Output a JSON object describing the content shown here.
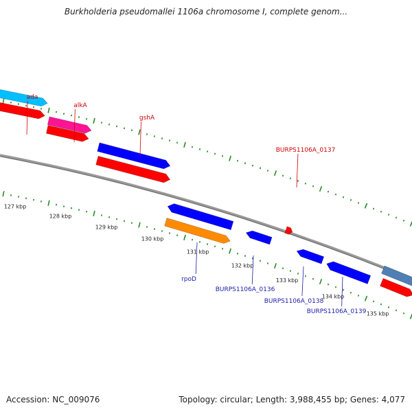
{
  "title": "Burkholderia pseudomallei 1106a chromosome I, complete genom...",
  "footer": {
    "accession": "Accession: NC_009076",
    "summary": "Topology: circular; Length: 3,988,455 bp; Genes: 4,077"
  },
  "colors": {
    "backbone": "#808080",
    "tick": "#228b22",
    "label_red": "#cc0000",
    "label_blue": "#1a1aa6",
    "cyan": "#00bfff",
    "magenta": "#ff1493",
    "blue": "#0000ff",
    "red": "#ff0000",
    "orange": "#ff8c00",
    "steelblue": "#4f7fb4"
  },
  "ticks": [
    {
      "label": "127 kbp"
    },
    {
      "label": "128 kbp"
    },
    {
      "label": "129 kbp"
    },
    {
      "label": "130 kbp"
    },
    {
      "label": "131 kbp"
    },
    {
      "label": "132 kbp"
    },
    {
      "label": "133 kbp"
    },
    {
      "label": "134 kbp"
    },
    {
      "label": "135 kbp"
    }
  ],
  "genes": [
    {
      "name": "ada",
      "color": "cyan"
    },
    {
      "name": "alkA",
      "color": "magenta"
    },
    {
      "name": "gshA",
      "color": "blue"
    },
    {
      "name": "BURPS1106A_0137",
      "color": "red"
    },
    {
      "name": "rpoD",
      "color": "orange"
    },
    {
      "name": "BURPS1106A_0136",
      "color": "blue"
    },
    {
      "name": "BURPS1106A_0138",
      "color": "blue"
    },
    {
      "name": "BURPS1106A_0139",
      "color": "blue"
    }
  ]
}
